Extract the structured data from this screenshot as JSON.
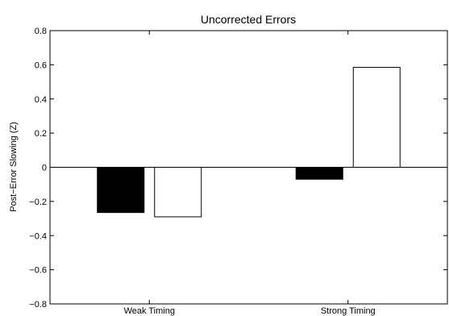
{
  "chart_data": {
    "type": "bar",
    "title": "Uncorrected Errors",
    "xlabel": "",
    "ylabel": "Post−Error Slowing (Z)",
    "categories": [
      "Weak Timing",
      "Strong Timing"
    ],
    "series": [
      {
        "values": [
          -0.265,
          -0.07
        ],
        "color": "#000000"
      },
      {
        "values": [
          -0.29,
          0.585
        ],
        "color": "#ffffff"
      }
    ],
    "ylim": [
      -0.8,
      0.8
    ],
    "yticks": [
      -0.8,
      -0.6,
      -0.4,
      -0.2,
      0,
      0.2,
      0.4,
      0.6,
      0.8
    ],
    "ytick_labels": [
      "−0.8",
      "−0.6",
      "−0.4",
      "−0.2",
      "0",
      "0.2",
      "0.4",
      "0.6",
      "0.8"
    ],
    "grid": false,
    "legend": false
  }
}
